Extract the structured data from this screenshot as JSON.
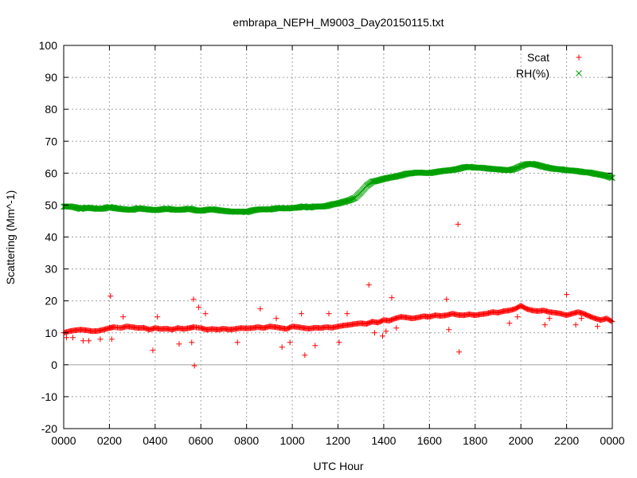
{
  "chart_data": {
    "type": "scatter",
    "title": "embrapa_NEPH_M9003_Day20150115.txt",
    "xlabel": "UTC Hour",
    "ylabel": "Scattering (Mm^-1)",
    "xlim": [
      0,
      24
    ],
    "ylim": [
      -20,
      100
    ],
    "x_ticks": [
      0,
      2,
      4,
      6,
      8,
      10,
      12,
      14,
      16,
      18,
      20,
      22,
      24
    ],
    "x_tick_labels": [
      "0000",
      "0200",
      "0400",
      "0600",
      "0800",
      "1000",
      "1200",
      "1400",
      "1600",
      "1800",
      "2000",
      "2200",
      "0000"
    ],
    "y_ticks": [
      -20,
      -10,
      0,
      10,
      20,
      30,
      40,
      50,
      60,
      70,
      80,
      90,
      100
    ],
    "grid": true,
    "legend_position": "top-right",
    "series": [
      {
        "name": "Scat",
        "color": "#ff0000",
        "marker": "plus",
        "x": [
          0.0,
          0.25,
          0.5,
          0.75,
          1.0,
          1.25,
          1.5,
          1.75,
          2.0,
          2.2,
          2.5,
          2.75,
          3.0,
          3.25,
          3.5,
          3.75,
          4.0,
          4.25,
          4.5,
          4.75,
          5.0,
          5.25,
          5.5,
          5.7,
          6.0,
          6.25,
          6.5,
          6.75,
          7.0,
          7.25,
          7.5,
          7.75,
          8.0,
          8.25,
          8.5,
          8.75,
          9.0,
          9.25,
          9.5,
          9.75,
          10.0,
          10.25,
          10.5,
          10.75,
          11.0,
          11.25,
          11.5,
          11.75,
          12.0,
          12.25,
          12.5,
          12.75,
          13.0,
          13.25,
          13.5,
          13.75,
          14.0,
          14.25,
          14.5,
          14.75,
          15.0,
          15.25,
          15.5,
          15.75,
          16.0,
          16.25,
          16.5,
          16.75,
          17.0,
          17.25,
          17.5,
          17.75,
          18.0,
          18.25,
          18.5,
          18.75,
          19.0,
          19.25,
          19.5,
          19.75,
          20.0,
          20.25,
          20.5,
          20.75,
          21.0,
          21.25,
          21.5,
          21.75,
          22.0,
          22.25,
          22.5,
          22.75,
          23.0,
          23.25,
          23.5,
          23.75,
          24.0,
          0.12,
          0.4,
          0.85,
          1.1,
          1.6,
          2.05,
          2.1,
          2.6,
          3.9,
          4.1,
          5.05,
          5.6,
          5.68,
          5.72,
          5.9,
          6.2,
          7.6,
          8.6,
          9.3,
          9.55,
          9.9,
          10.4,
          10.55,
          11.0,
          11.6,
          12.05,
          12.4,
          13.35,
          13.6,
          13.95,
          14.1,
          14.35,
          14.55,
          15.9,
          16.75,
          16.85,
          17.25,
          17.3,
          19.5,
          19.85,
          21.05,
          21.25,
          22.0,
          22.4,
          22.65,
          23.35
        ],
        "y": [
          10,
          10.5,
          10.8,
          11,
          10.8,
          10.5,
          10.6,
          11,
          11.5,
          11.8,
          11.5,
          12,
          11.8,
          11.5,
          11.6,
          11,
          11.5,
          11.2,
          11.3,
          11,
          11.5,
          11.2,
          11.5,
          11.8,
          11.5,
          11,
          11.2,
          11,
          11.3,
          11,
          11.2,
          11.5,
          11.4,
          11.5,
          11.8,
          11.5,
          12,
          11.8,
          11.5,
          11.2,
          12,
          11.8,
          11.5,
          11.3,
          11.6,
          11.5,
          11.8,
          11.6,
          12,
          12.3,
          12.5,
          12.8,
          13,
          12.8,
          13.5,
          13.2,
          14,
          13.8,
          14.5,
          15,
          14.8,
          14.5,
          14.8,
          15.2,
          15,
          15.5,
          15.3,
          15.5,
          16,
          15.6,
          15.5,
          15.8,
          15.5,
          15.8,
          16,
          16.5,
          16.3,
          16.8,
          17,
          17.5,
          18.5,
          17.5,
          17,
          16.8,
          17,
          16.5,
          16.3,
          16,
          15.5,
          16,
          16.5,
          16,
          15.2,
          14.5,
          14,
          14.5,
          13.5,
          8.5,
          8.5,
          7.5,
          7.5,
          8,
          21.5,
          8,
          15,
          4.5,
          15,
          6.5,
          7,
          20.5,
          -0.3,
          18,
          16,
          7,
          17.5,
          14.5,
          5.5,
          7,
          16,
          3,
          6,
          16,
          7,
          16,
          25,
          10,
          9,
          10.5,
          21,
          11.5,
          15,
          20.5,
          11,
          44,
          4,
          13,
          15,
          12.5,
          14.5,
          22,
          12.5,
          14.5,
          12
        ]
      },
      {
        "name": "RH(%)",
        "color": "#00a000",
        "marker": "cross",
        "x": [
          0.0,
          0.25,
          0.5,
          0.75,
          1.0,
          1.25,
          1.5,
          1.75,
          2.0,
          2.25,
          2.5,
          2.75,
          3.0,
          3.25,
          3.5,
          3.75,
          4.0,
          4.25,
          4.5,
          4.75,
          5.0,
          5.25,
          5.5,
          5.75,
          6.0,
          6.25,
          6.5,
          6.75,
          7.0,
          7.25,
          7.5,
          7.75,
          8.0,
          8.25,
          8.5,
          8.75,
          9.0,
          9.25,
          9.5,
          9.75,
          10.0,
          10.25,
          10.5,
          10.75,
          11.0,
          11.25,
          11.5,
          11.75,
          12.0,
          12.25,
          12.5,
          12.75,
          13.0,
          13.25,
          13.5,
          13.75,
          14.0,
          14.25,
          14.5,
          14.75,
          15.0,
          15.25,
          15.5,
          15.75,
          16.0,
          16.25,
          16.5,
          16.75,
          17.0,
          17.25,
          17.5,
          17.75,
          18.0,
          18.25,
          18.5,
          18.75,
          19.0,
          19.25,
          19.5,
          19.75,
          20.0,
          20.25,
          20.5,
          20.75,
          21.0,
          21.25,
          21.5,
          21.75,
          22.0,
          22.25,
          22.5,
          22.75,
          23.0,
          23.25,
          23.5,
          23.75,
          24.0
        ],
        "y": [
          49.5,
          49.6,
          49.3,
          48.8,
          49.2,
          49,
          48.8,
          48.9,
          49.4,
          49,
          48.8,
          48.6,
          48.5,
          49,
          48.8,
          48.6,
          48.4,
          48.6,
          48.9,
          48.6,
          48.5,
          48.6,
          48.9,
          48.4,
          48.2,
          48.5,
          48.7,
          48.4,
          48.2,
          48,
          47.9,
          48,
          47.8,
          48.3,
          48.6,
          48.7,
          48.6,
          48.9,
          49.1,
          48.9,
          49.1,
          49.2,
          49.6,
          49.2,
          49.6,
          49.5,
          49.7,
          50.2,
          50.5,
          51,
          51.5,
          52.3,
          54,
          56,
          57.3,
          57.7,
          58.2,
          58.6,
          58.9,
          59.3,
          59.8,
          60,
          60.2,
          60.1,
          60,
          60.3,
          60.6,
          60.8,
          61,
          61.3,
          61.8,
          62,
          61.7,
          61.7,
          61.5,
          61.3,
          61.2,
          61,
          60.9,
          61.4,
          62.2,
          62.8,
          62.9,
          62.5,
          62,
          61.6,
          61.3,
          61.2,
          60.9,
          60.8,
          60.6,
          60.3,
          60.2,
          59.8,
          59.5,
          59.1,
          58.5
        ]
      }
    ]
  }
}
